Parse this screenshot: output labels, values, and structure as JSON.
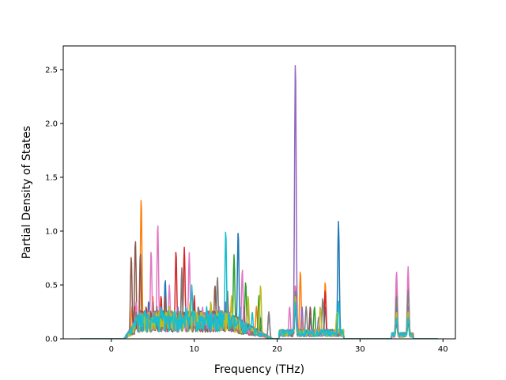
{
  "chart_data": {
    "type": "line",
    "title": "",
    "xlabel": "Frequency (THz)",
    "ylabel": "Partial Density of States",
    "xlim": [
      -5.8,
      41.5
    ],
    "ylim": [
      0,
      2.72
    ],
    "xticks": [
      0,
      10,
      20,
      30,
      40
    ],
    "xtick_labels": [
      "0",
      "10",
      "20",
      "30",
      "40"
    ],
    "yticks": [
      0.0,
      0.5,
      1.0,
      1.5,
      2.0,
      2.5
    ],
    "ytick_labels": [
      "0.0",
      "0.5",
      "1.0",
      "1.5",
      "2.0",
      "2.5"
    ],
    "grid": false,
    "legend": "none",
    "x_range_of_data": [
      -3.8,
      39.4
    ],
    "series": [
      {
        "color": "#1f77b4",
        "peaks": [
          [
            3.0,
            0.25
          ],
          [
            4.5,
            0.35
          ],
          [
            6.5,
            0.55
          ],
          [
            8.0,
            0.3
          ],
          [
            10.5,
            0.3
          ],
          [
            13.0,
            0.25
          ],
          [
            15.3,
            1.0
          ],
          [
            18.0,
            0.2
          ],
          [
            22.2,
            0.45
          ],
          [
            24.0,
            0.2
          ],
          [
            25.8,
            0.3
          ],
          [
            27.4,
            1.09
          ],
          [
            34.4,
            0.35
          ],
          [
            35.8,
            0.3
          ]
        ]
      },
      {
        "color": "#ff7f0e",
        "peaks": [
          [
            2.5,
            0.3
          ],
          [
            3.6,
            1.31
          ],
          [
            5.0,
            0.4
          ],
          [
            7.0,
            0.3
          ],
          [
            9.5,
            0.35
          ],
          [
            12.0,
            0.2
          ],
          [
            14.5,
            0.3
          ],
          [
            17.5,
            0.3
          ],
          [
            22.2,
            0.5
          ],
          [
            22.8,
            0.63
          ],
          [
            25.8,
            0.53
          ],
          [
            34.4,
            0.2
          ],
          [
            35.8,
            0.25
          ]
        ]
      },
      {
        "color": "#2ca02c",
        "peaks": [
          [
            3.2,
            0.2
          ],
          [
            5.0,
            0.3
          ],
          [
            7.5,
            0.25
          ],
          [
            10.0,
            0.3
          ],
          [
            12.0,
            0.3
          ],
          [
            14.8,
            0.78
          ],
          [
            16.2,
            0.53
          ],
          [
            17.8,
            0.4
          ],
          [
            22.2,
            0.35
          ],
          [
            24.5,
            0.3
          ],
          [
            34.4,
            0.15
          ],
          [
            35.8,
            0.15
          ]
        ]
      },
      {
        "color": "#d62728",
        "peaks": [
          [
            2.8,
            0.3
          ],
          [
            4.2,
            0.3
          ],
          [
            6.0,
            0.4
          ],
          [
            7.8,
            0.82
          ],
          [
            8.8,
            0.85
          ],
          [
            10.0,
            0.4
          ],
          [
            11.5,
            0.25
          ],
          [
            13.5,
            0.2
          ],
          [
            15.0,
            0.2
          ],
          [
            22.2,
            0.3
          ],
          [
            25.8,
            0.45
          ],
          [
            34.4,
            0.2
          ],
          [
            35.8,
            0.2
          ]
        ]
      },
      {
        "color": "#9467bd",
        "peaks": [
          [
            3.0,
            0.2
          ],
          [
            5.5,
            0.3
          ],
          [
            8.0,
            0.3
          ],
          [
            10.5,
            0.25
          ],
          [
            13.8,
            0.35
          ],
          [
            15.5,
            0.3
          ],
          [
            19.0,
            0.25
          ],
          [
            22.2,
            2.59
          ],
          [
            23.0,
            0.3
          ],
          [
            25.0,
            0.2
          ],
          [
            34.4,
            0.2
          ],
          [
            35.8,
            0.3
          ]
        ]
      },
      {
        "color": "#8c564b",
        "peaks": [
          [
            2.4,
            0.77
          ],
          [
            2.9,
            0.92
          ],
          [
            3.5,
            0.8
          ],
          [
            5.0,
            0.35
          ],
          [
            6.5,
            0.4
          ],
          [
            8.5,
            0.5
          ],
          [
            10.5,
            0.3
          ],
          [
            12.5,
            0.5
          ],
          [
            14.0,
            0.45
          ],
          [
            16.0,
            0.3
          ],
          [
            22.2,
            0.4
          ],
          [
            24.0,
            0.3
          ],
          [
            34.4,
            0.58
          ],
          [
            35.8,
            0.55
          ]
        ]
      },
      {
        "color": "#e377c2",
        "peaks": [
          [
            3.0,
            0.35
          ],
          [
            4.8,
            0.82
          ],
          [
            5.6,
            1.07
          ],
          [
            7.0,
            0.5
          ],
          [
            9.4,
            0.8
          ],
          [
            11.0,
            0.3
          ],
          [
            13.0,
            0.3
          ],
          [
            15.8,
            0.65
          ],
          [
            21.5,
            0.3
          ],
          [
            22.2,
            0.5
          ],
          [
            34.4,
            0.63
          ],
          [
            35.8,
            0.67
          ]
        ]
      },
      {
        "color": "#7f7f7f",
        "peaks": [
          [
            3.0,
            0.25
          ],
          [
            5.5,
            0.3
          ],
          [
            8.5,
            0.66
          ],
          [
            10.5,
            0.3
          ],
          [
            12.8,
            0.58
          ],
          [
            14.0,
            0.35
          ],
          [
            16.5,
            0.3
          ],
          [
            19.0,
            0.25
          ],
          [
            22.2,
            0.45
          ],
          [
            23.5,
            0.3
          ],
          [
            25.5,
            0.38
          ],
          [
            34.4,
            0.4
          ],
          [
            35.8,
            0.45
          ]
        ]
      },
      {
        "color": "#bcbd22",
        "peaks": [
          [
            3.0,
            0.2
          ],
          [
            4.5,
            0.25
          ],
          [
            7.0,
            0.3
          ],
          [
            9.5,
            0.35
          ],
          [
            12.0,
            0.35
          ],
          [
            14.5,
            0.4
          ],
          [
            16.5,
            0.4
          ],
          [
            18.0,
            0.5
          ],
          [
            22.2,
            0.4
          ],
          [
            25.2,
            0.3
          ],
          [
            27.2,
            0.25
          ],
          [
            34.4,
            0.25
          ],
          [
            35.8,
            0.25
          ]
        ]
      },
      {
        "color": "#17becf",
        "peaks": [
          [
            3.0,
            0.2
          ],
          [
            4.0,
            0.25
          ],
          [
            6.0,
            0.3
          ],
          [
            9.0,
            0.3
          ],
          [
            9.7,
            0.5
          ],
          [
            11.5,
            0.3
          ],
          [
            13.8,
            1.01
          ],
          [
            15.5,
            0.3
          ],
          [
            17.0,
            0.25
          ],
          [
            22.2,
            0.35
          ],
          [
            27.4,
            0.35
          ],
          [
            34.4,
            0.2
          ],
          [
            35.8,
            0.2
          ]
        ]
      }
    ]
  }
}
